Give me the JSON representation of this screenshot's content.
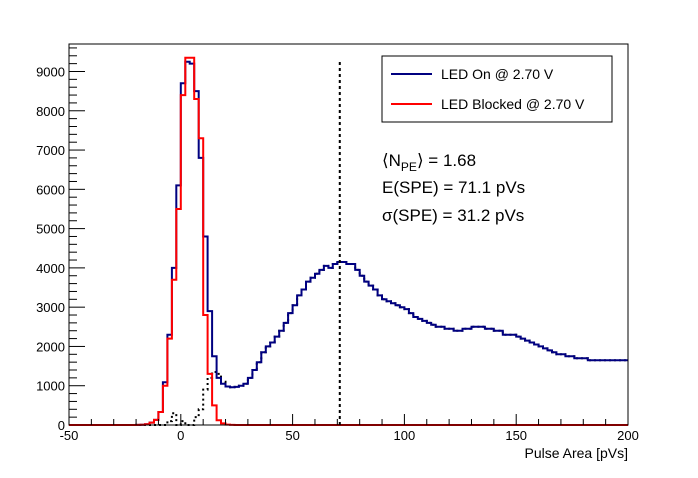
{
  "chart_data": {
    "type": "line",
    "style": "step-histogram",
    "xlabel": "Pulse Area [pVs]",
    "ylabel": "",
    "xlim": [
      -50,
      200
    ],
    "ylim": [
      0,
      9700
    ],
    "xticks": [
      -50,
      0,
      50,
      100,
      150,
      200
    ],
    "yticks": [
      0,
      1000,
      2000,
      3000,
      4000,
      5000,
      6000,
      7000,
      8000,
      9000
    ],
    "grid": false,
    "legend_position": "top-right",
    "vertical_line": {
      "x": 71.1,
      "style": "dotted",
      "color": "#000000"
    },
    "annotations": {
      "npe_prefix": "⟨N",
      "npe_sub": "PE",
      "npe_suffix": "⟩ = 1.68",
      "spe_mean": "E(SPE) = 71.1 pVs",
      "spe_sigma": "σ(SPE) = 31.2 pVs"
    },
    "series": [
      {
        "name": "LED On @ 2.70 V",
        "color": "#000080",
        "bin_start": -50,
        "bin_width": 2,
        "values": [
          0,
          0,
          0,
          0,
          0,
          0,
          0,
          0,
          0,
          0,
          0,
          0,
          0,
          0,
          0,
          2,
          5,
          20,
          60,
          130,
          330,
          1090,
          2300,
          4000,
          6100,
          8700,
          9250,
          9200,
          8500,
          6800,
          4800,
          2900,
          1750,
          1200,
          1050,
          980,
          960,
          970,
          1000,
          1050,
          1200,
          1400,
          1600,
          1850,
          2000,
          2100,
          2250,
          2400,
          2600,
          2850,
          3050,
          3300,
          3450,
          3650,
          3750,
          3850,
          3950,
          4050,
          4000,
          4100,
          4150,
          4150,
          4100,
          4100,
          3950,
          3800,
          3650,
          3550,
          3450,
          3300,
          3200,
          3150,
          3100,
          3050,
          3000,
          2950,
          2850,
          2750,
          2700,
          2650,
          2600,
          2550,
          2500,
          2500,
          2450,
          2450,
          2400,
          2400,
          2450,
          2450,
          2500,
          2500,
          2500,
          2450,
          2450,
          2400,
          2400,
          2300,
          2300,
          2300,
          2250,
          2200,
          2150,
          2100,
          2050,
          2000,
          1950,
          1900,
          1850,
          1800,
          1800,
          1750,
          1750,
          1700,
          1700,
          1700,
          1650,
          1650,
          1650,
          1650,
          1650,
          1650,
          1650,
          1650,
          1650
        ]
      },
      {
        "name": "LED Blocked @ 2.70 V",
        "color": "#ff0000",
        "bin_start": -50,
        "bin_width": 2,
        "values": [
          0,
          0,
          0,
          0,
          0,
          0,
          0,
          0,
          0,
          0,
          0,
          0,
          0,
          0,
          0,
          2,
          5,
          20,
          60,
          130,
          330,
          1000,
          2200,
          3700,
          5500,
          8400,
          9350,
          9350,
          8300,
          7300,
          2800,
          1300,
          500,
          120,
          40,
          10,
          3,
          0,
          0,
          0,
          0,
          0,
          0,
          0,
          0,
          0,
          0,
          0,
          0,
          0,
          0,
          0,
          0,
          0,
          0,
          0,
          0,
          0,
          0,
          0,
          0,
          0,
          0,
          0,
          0,
          0,
          0,
          0,
          0,
          0,
          0,
          0,
          0,
          0,
          0,
          0,
          0,
          0,
          0,
          0,
          0,
          0,
          0,
          0,
          0,
          0,
          0,
          0,
          0,
          0,
          0,
          0,
          0,
          0,
          0,
          0,
          0,
          0,
          0,
          0,
          0,
          0,
          0,
          0,
          0,
          0,
          0,
          0,
          0,
          0,
          0,
          0,
          0,
          0,
          0,
          0,
          0,
          0,
          0,
          0,
          0,
          0,
          0,
          0,
          0
        ]
      },
      {
        "name": "",
        "color": "#000000",
        "dashed": true,
        "bin_start": -50,
        "bin_width": 2,
        "values": [
          0,
          0,
          0,
          0,
          0,
          0,
          0,
          0,
          0,
          0,
          0,
          0,
          0,
          0,
          0,
          0,
          0,
          0,
          0,
          0,
          0,
          0,
          100,
          300,
          0,
          100,
          0,
          0,
          200,
          400,
          900,
          1200,
          1350,
          1300,
          1100,
          980,
          960,
          970,
          1000,
          1050,
          1200,
          1400,
          1600,
          1850,
          2000,
          2100,
          2250,
          2400,
          2600,
          2850,
          3050,
          3300,
          3450,
          3650,
          3750,
          3850,
          3950,
          4050,
          4000,
          4100,
          4150,
          4150,
          4100,
          4100,
          3950,
          3800,
          3650,
          3550,
          3450,
          3300,
          3200,
          3150,
          3100,
          3050,
          3000,
          2950,
          2850,
          2750,
          2700,
          2650,
          2600,
          2550,
          2500,
          2500,
          2450,
          2450,
          2400,
          2400,
          2450,
          2450,
          2500,
          2500,
          2500,
          2450,
          2450,
          2400,
          2400,
          2300,
          2300,
          2300,
          2250,
          2200,
          2150,
          2100,
          2050,
          2000,
          1950,
          1900,
          1850,
          1800,
          1800,
          1750,
          1750,
          1700,
          1700,
          1700,
          1650,
          1650,
          1650,
          1650,
          1650,
          1650,
          1650,
          1650,
          1650
        ]
      }
    ]
  }
}
